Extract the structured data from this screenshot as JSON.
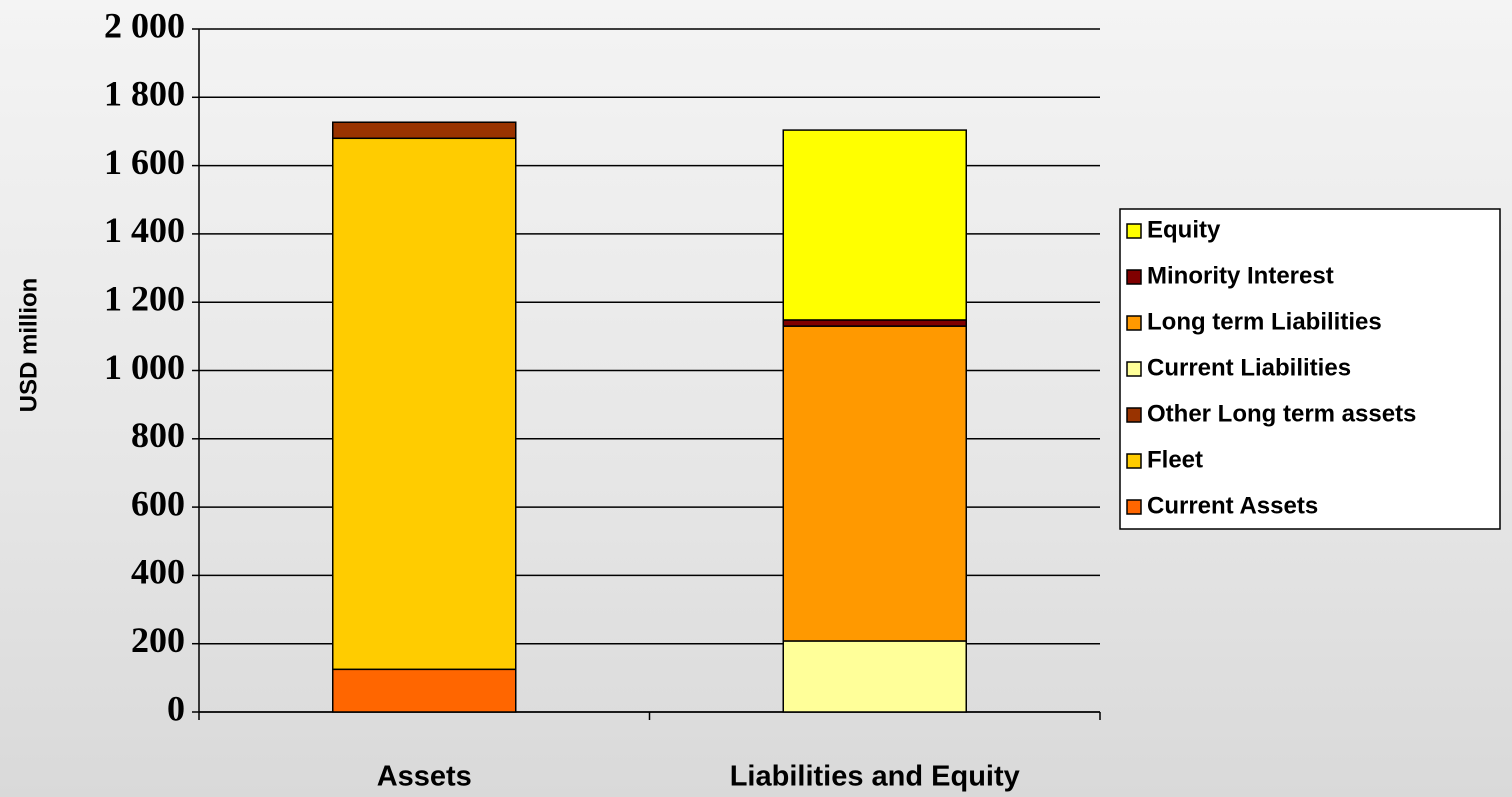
{
  "chart_data": {
    "type": "stacked_bar",
    "y_label": "USD million",
    "categories": [
      "Assets",
      "Liabilities and Equity"
    ],
    "series": [
      {
        "name": "Current Assets",
        "color": "#ff6600",
        "values": [
          125,
          null
        ]
      },
      {
        "name": "Fleet",
        "color": "#ffcc00",
        "values": [
          1555,
          null
        ]
      },
      {
        "name": "Other Long term assets",
        "color": "#993300",
        "values": [
          47,
          null
        ]
      },
      {
        "name": "Current Liabilities",
        "color": "#ffff99",
        "values": [
          null,
          208
        ]
      },
      {
        "name": "Long term Liabilities",
        "color": "#ff9900",
        "values": [
          null,
          922
        ]
      },
      {
        "name": "Minority Interest",
        "color": "#800000",
        "values": [
          null,
          18
        ]
      },
      {
        "name": "Equity",
        "color": "#ffff00",
        "values": [
          null,
          556
        ]
      }
    ],
    "ylim": [
      0,
      2000
    ],
    "yticks": [
      0,
      200,
      400,
      600,
      800,
      {
        "value": 1000,
        "label": "1 000"
      },
      {
        "value": 1200,
        "label": "1 200"
      },
      {
        "value": 1400,
        "label": "1 400"
      },
      {
        "value": 1600,
        "label": "1 600"
      },
      {
        "value": 1800,
        "label": "1 800"
      },
      {
        "value": 2000,
        "label": "2 000"
      }
    ],
    "grid": true,
    "legend": "right"
  }
}
